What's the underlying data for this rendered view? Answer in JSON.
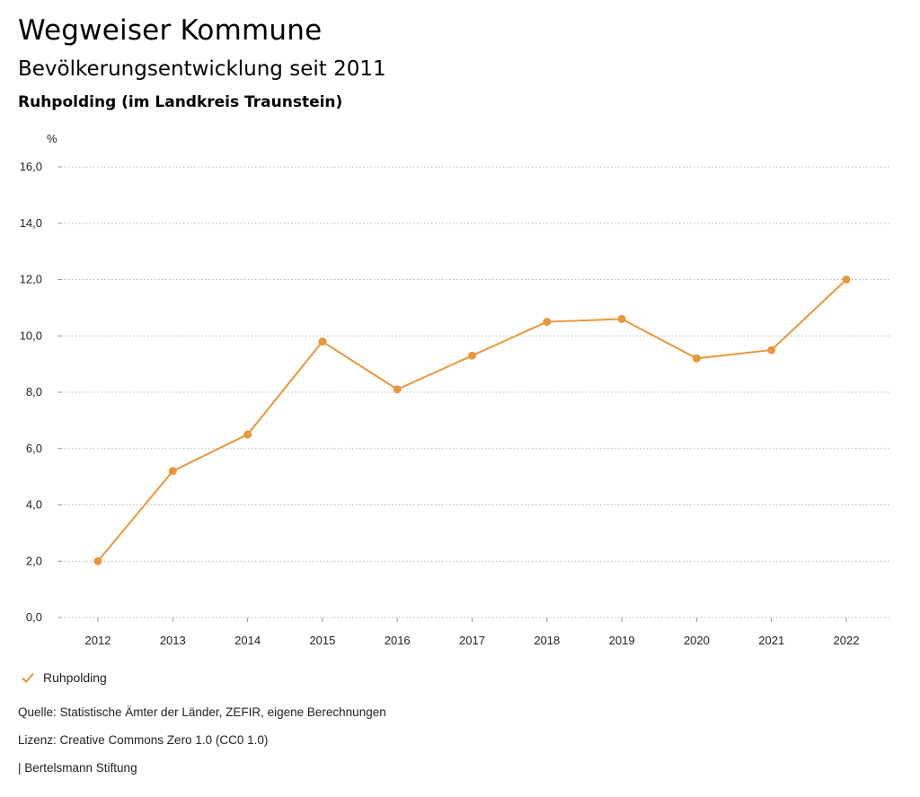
{
  "header": {
    "title": "Wegweiser Kommune",
    "subtitle": "Bevölkerungsentwicklung seit 2011",
    "region": "Ruhpolding (im Landkreis Traunstein)"
  },
  "chart_data": {
    "type": "line",
    "unit_label": "%",
    "x": [
      "2012",
      "2013",
      "2014",
      "2015",
      "2016",
      "2017",
      "2018",
      "2019",
      "2020",
      "2021",
      "2022"
    ],
    "series": [
      {
        "name": "Ruhpolding",
        "color": "#e8973a",
        "values": [
          2.0,
          5.2,
          6.5,
          9.8,
          8.1,
          9.3,
          10.5,
          10.6,
          9.2,
          9.5,
          12.0
        ]
      }
    ],
    "y_ticks": [
      "0,0",
      "2,0",
      "4,0",
      "6,0",
      "8,0",
      "10,0",
      "12,0",
      "14,0",
      "16,0"
    ],
    "ylim": [
      0,
      16
    ],
    "grid": true,
    "legend_position": "bottom-left"
  },
  "legend": {
    "label": "Ruhpolding",
    "icon": "check-icon"
  },
  "footer": {
    "source": "Quelle: Statistische Ämter der Länder, ZEFIR, eigene Berechnungen",
    "license": "Lizenz: Creative Commons Zero 1.0 (CC0 1.0)",
    "publisher": "| Bertelsmann Stiftung"
  }
}
